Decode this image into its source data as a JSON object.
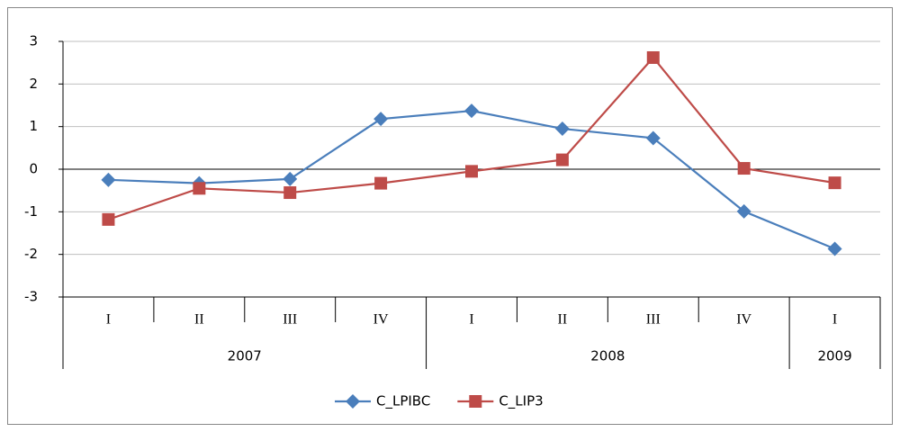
{
  "chart_data": {
    "type": "line",
    "categories": [
      "I",
      "II",
      "III",
      "IV",
      "I",
      "II",
      "III",
      "IV",
      "I"
    ],
    "years": [
      "2007",
      null,
      null,
      null,
      "2008",
      null,
      null,
      null,
      "2009"
    ],
    "series": [
      {
        "name": "C_LPIBC",
        "color": "#4a7ebb",
        "marker": "diamond",
        "values": [
          -0.25,
          -0.33,
          -0.23,
          1.18,
          1.37,
          0.95,
          0.73,
          -0.99,
          -1.87
        ]
      },
      {
        "name": "C_LIP3",
        "color": "#be4b48",
        "marker": "square",
        "values": [
          -1.18,
          -0.45,
          -0.55,
          -0.33,
          -0.05,
          0.22,
          2.62,
          0.02,
          -0.32
        ]
      }
    ],
    "ylim": [
      -3,
      3
    ],
    "yticks": [
      -3,
      -2,
      -1,
      0,
      1,
      2,
      3
    ],
    "grid": true,
    "legend": "bottom"
  }
}
